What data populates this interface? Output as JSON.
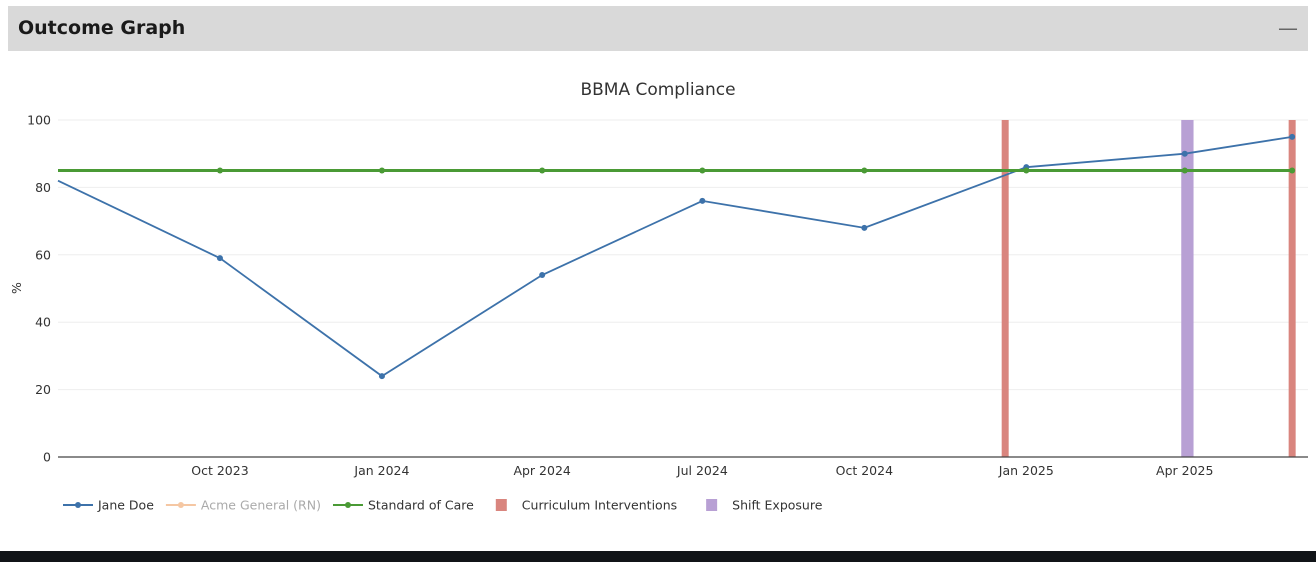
{
  "panel": {
    "title": "Outcome Graph",
    "collapse_icon": "minus-icon"
  },
  "chart_data": {
    "type": "line",
    "title": "BBMA Compliance",
    "xlabel": "",
    "ylabel": "%",
    "ylim": [
      0,
      100
    ],
    "yticks": [
      0,
      20,
      40,
      60,
      80,
      100
    ],
    "xlim": [
      "2023-07-01",
      "2025-06-10"
    ],
    "xticks": [
      {
        "date": "2023-10-01",
        "label": "Oct 2023"
      },
      {
        "date": "2024-01-01",
        "label": "Jan 2024"
      },
      {
        "date": "2024-04-01",
        "label": "Apr 2024"
      },
      {
        "date": "2024-07-01",
        "label": "Jul 2024"
      },
      {
        "date": "2024-10-01",
        "label": "Oct 2024"
      },
      {
        "date": "2025-01-01",
        "label": "Jan 2025"
      },
      {
        "date": "2025-04-01",
        "label": "Apr 2025"
      }
    ],
    "series": [
      {
        "name": "Jane Doe",
        "color": "#3d72aa",
        "points": [
          {
            "x": "2023-07-01",
            "y": 82
          },
          {
            "x": "2023-10-01",
            "y": 59
          },
          {
            "x": "2024-01-01",
            "y": 24
          },
          {
            "x": "2024-04-01",
            "y": 54
          },
          {
            "x": "2024-07-01",
            "y": 76
          },
          {
            "x": "2024-10-01",
            "y": 68
          },
          {
            "x": "2025-01-01",
            "y": 86
          },
          {
            "x": "2025-04-01",
            "y": 90
          },
          {
            "x": "2025-06-01",
            "y": 95
          }
        ]
      },
      {
        "name": "Acme General (RN)",
        "color": "#f5c7a3",
        "hidden": true,
        "points": []
      },
      {
        "name": "Standard of Care",
        "color": "#4a9a35",
        "points": [
          {
            "x": "2023-07-01",
            "y": 85
          },
          {
            "x": "2023-10-01",
            "y": 85
          },
          {
            "x": "2024-01-01",
            "y": 85
          },
          {
            "x": "2024-04-01",
            "y": 85
          },
          {
            "x": "2024-07-01",
            "y": 85
          },
          {
            "x": "2024-10-01",
            "y": 85
          },
          {
            "x": "2025-01-01",
            "y": 85
          },
          {
            "x": "2025-04-01",
            "y": 85
          },
          {
            "x": "2025-06-01",
            "y": 85
          }
        ]
      }
    ],
    "bars": [
      {
        "name": "Curriculum Interventions",
        "color": "#d9857e",
        "dates": [
          "2024-12-20",
          "2025-06-01"
        ]
      },
      {
        "name": "Shift Exposure",
        "color": "#b8a0d4",
        "dates": [
          "2025-04-01",
          "2025-04-04"
        ]
      }
    ],
    "legend": [
      {
        "label": "Jane Doe",
        "type": "line",
        "color": "#3d72aa",
        "muted": false
      },
      {
        "label": "Acme General (RN)",
        "type": "line",
        "color": "#f5c7a3",
        "muted": true
      },
      {
        "label": "Standard of Care",
        "type": "line",
        "color": "#4a9a35",
        "muted": false
      },
      {
        "label": "Curriculum Interventions",
        "type": "bar",
        "color": "#d9857e",
        "muted": false
      },
      {
        "label": "Shift Exposure",
        "type": "bar",
        "color": "#b8a0d4",
        "muted": false
      }
    ],
    "legend_position": "bottom-left",
    "grid": true
  }
}
